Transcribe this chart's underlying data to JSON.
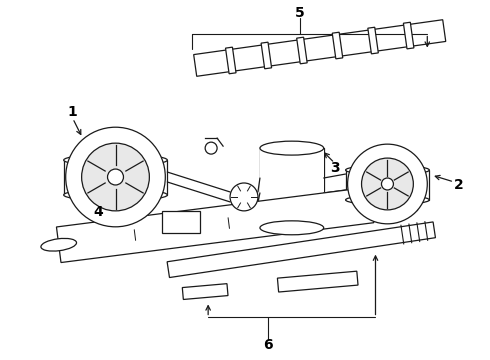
{
  "background_color": "#ffffff",
  "line_color": "#1a1a1a",
  "label_color": "#000000",
  "figsize": [
    4.9,
    3.6
  ],
  "dpi": 100,
  "label_fontsize": 10
}
